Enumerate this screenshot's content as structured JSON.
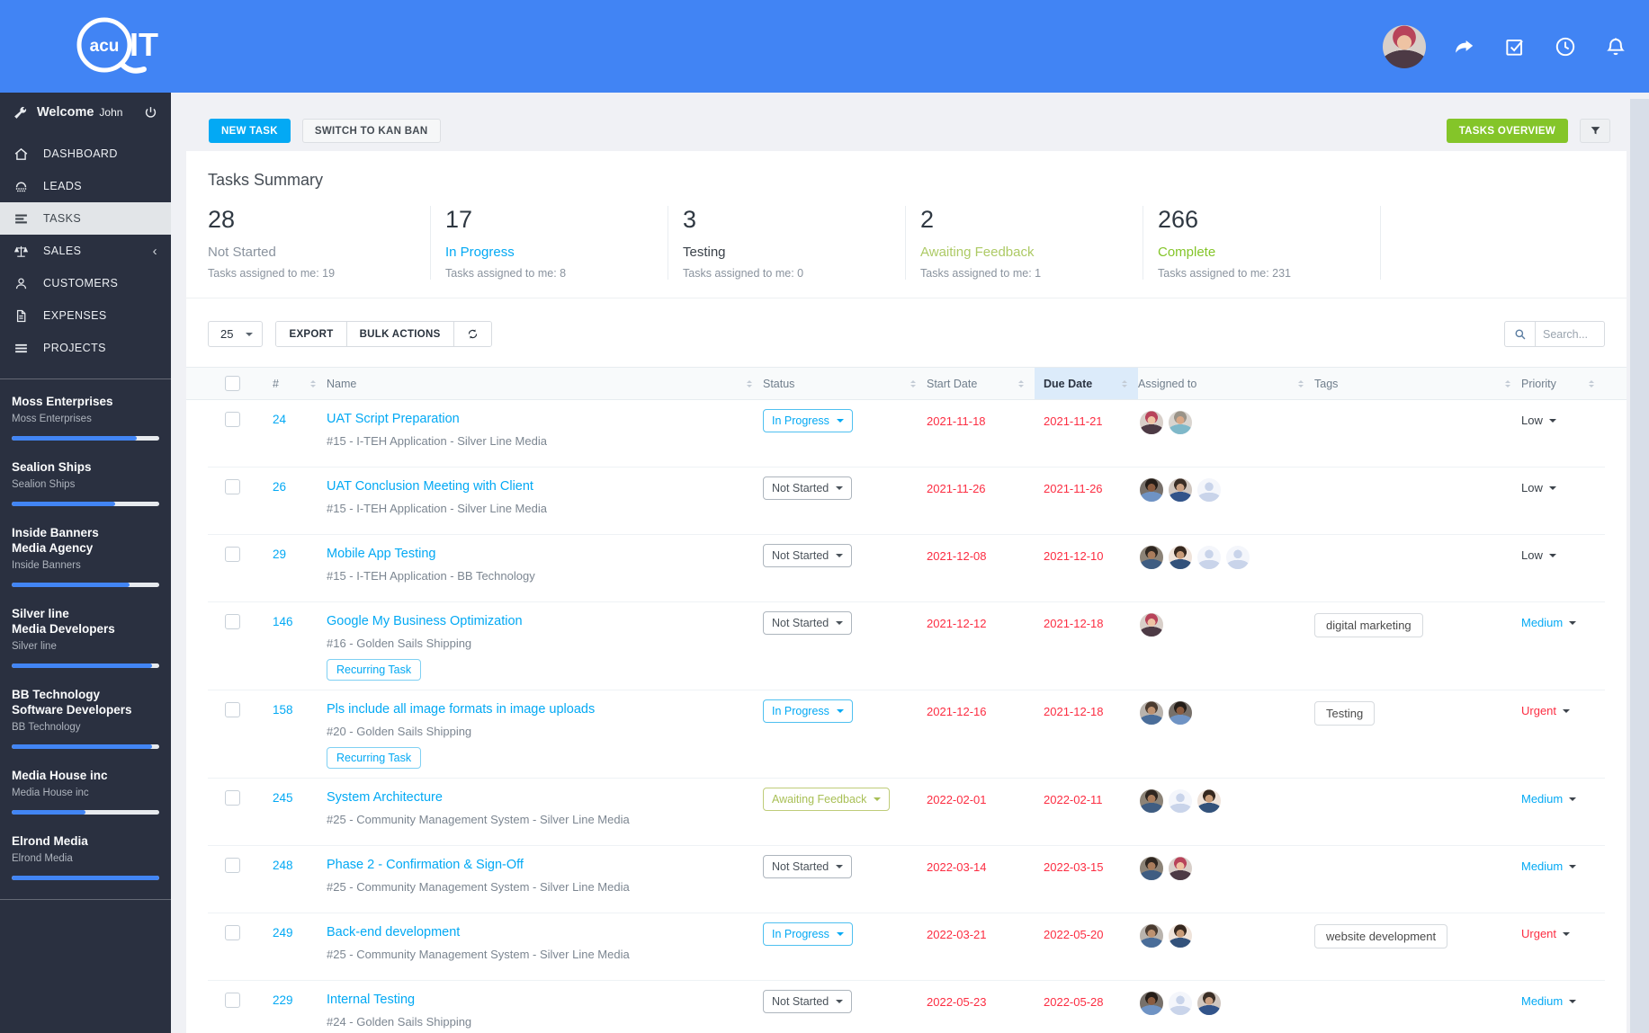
{
  "header": {
    "logo": {
      "circle_text": "acu",
      "suffix_text": "IT"
    },
    "icons": [
      "share-icon",
      "check-square-icon",
      "clock-icon",
      "bell-icon"
    ]
  },
  "sidebar": {
    "greeting": "Welcome",
    "user": "John",
    "menu": [
      {
        "label": "DASHBOARD",
        "icon": "home-icon"
      },
      {
        "label": "LEADS",
        "icon": "leads-icon"
      },
      {
        "label": "TASKS",
        "icon": "tasks-icon"
      },
      {
        "label": "SALES",
        "icon": "scale-icon"
      },
      {
        "label": "CUSTOMERS",
        "icon": "person-icon"
      },
      {
        "label": "EXPENSES",
        "icon": "document-icon"
      },
      {
        "label": "PROJECTS",
        "icon": "menu-icon"
      }
    ],
    "projects": [
      {
        "name": "Moss Enterprises",
        "subtitle": "Moss Enterprises",
        "progress": 85
      },
      {
        "name": "Sealion Ships",
        "subtitle": "Sealion Ships",
        "progress": 70
      },
      {
        "name": "Inside Banners",
        "name2": "Media Agency",
        "subtitle": "Inside Banners",
        "progress": 80
      },
      {
        "name": "Silver line",
        "name2": "Media Developers",
        "subtitle": "Silver line",
        "progress": 95
      },
      {
        "name": "BB Technology",
        "name2": "Software Developers",
        "subtitle": "BB Technology",
        "progress": 95
      },
      {
        "name": "Media House inc",
        "subtitle": "Media House inc",
        "progress": 50
      },
      {
        "name": "Elrond Media",
        "subtitle": "Elrond Media",
        "progress": 100
      }
    ]
  },
  "toolbar": {
    "new_task": "NEW TASK",
    "switch_kanban": "SWITCH TO KAN BAN",
    "tasks_overview": "TASKS OVERVIEW"
  },
  "summary": {
    "title": "Tasks Summary",
    "items": [
      {
        "count": "28",
        "label": "Not Started",
        "assigned": "Tasks assigned to me: 19",
        "color": "#8a939e"
      },
      {
        "count": "17",
        "label": "In Progress",
        "assigned": "Tasks assigned to me: 8",
        "color": "#03a9f4"
      },
      {
        "count": "3",
        "label": "Testing",
        "assigned": "Tasks assigned to me: 0",
        "color": "#3a4149"
      },
      {
        "count": "2",
        "label": "Awaiting Feedback",
        "assigned": "Tasks assigned to me: 1",
        "color": "#adca65"
      },
      {
        "count": "266",
        "label": "Complete",
        "assigned": "Tasks assigned to me: 231",
        "color": "#84c529"
      }
    ]
  },
  "table_controls": {
    "page_size": "25",
    "export_label": "EXPORT",
    "bulk_actions_label": "BULK ACTIONS",
    "search_placeholder": "Search..."
  },
  "table": {
    "columns": [
      "#",
      "Name",
      "Status",
      "Start Date",
      "Due Date",
      "Assigned to",
      "Tags",
      "Priority"
    ],
    "rows": [
      {
        "id": "24",
        "name": "UAT Script Preparation",
        "subtitle": "#15 - I-TEH Application - Silver Line Media",
        "status": "In Progress",
        "start": "2021-11-18",
        "due": "2021-11-21",
        "avatars": [
          "w1",
          "m2"
        ],
        "tags": [],
        "priority": "Low"
      },
      {
        "id": "26",
        "name": "UAT Conclusion Meeting with Client",
        "subtitle": "#15 - I-TEH Application - Silver Line Media",
        "status": "Not Started",
        "start": "2021-11-26",
        "due": "2021-11-26",
        "avatars": [
          "m3",
          "m4",
          "ph"
        ],
        "tags": [],
        "priority": "Low"
      },
      {
        "id": "29",
        "name": "Mobile App Testing",
        "subtitle": "#15 - I-TEH Application -  BB Technology",
        "status": "Not Started",
        "start": "2021-12-08",
        "due": "2021-12-10",
        "avatars": [
          "m1",
          "m5",
          "ph",
          "ph"
        ],
        "tags": [],
        "priority": "Low"
      },
      {
        "id": "146",
        "name": "Google My Business Optimization",
        "subtitle": "#16 - Golden Sails Shipping",
        "recurring_label": "Recurring Task",
        "status": "Not Started",
        "start": "2021-12-12",
        "due": "2021-12-18",
        "avatars": [
          "w1"
        ],
        "tags": [
          "digital marketing"
        ],
        "priority": "Medium"
      },
      {
        "id": "158",
        "name": "Pls include all image formats in image uploads",
        "subtitle": "#20 - Golden Sails Shipping",
        "recurring_label": "Recurring Task",
        "status": "In Progress",
        "start": "2021-12-16",
        "due": "2021-12-18",
        "avatars": [
          "m6",
          "m3"
        ],
        "tags": [
          "Testing"
        ],
        "priority": "Urgent"
      },
      {
        "id": "245",
        "name": "System Architecture",
        "subtitle": "#25 - Community Management System - Silver Line Media",
        "status": "Awaiting Feedback",
        "start": "2022-02-01",
        "due": "2022-02-11",
        "avatars": [
          "m1",
          "ph",
          "m5"
        ],
        "tags": [],
        "priority": "Medium"
      },
      {
        "id": "248",
        "name": "Phase 2 - Confirmation & Sign-Off",
        "subtitle": "#25 - Community Management System - Silver Line Media",
        "status": "Not Started",
        "start": "2022-03-14",
        "due": "2022-03-15",
        "avatars": [
          "m1",
          "w1"
        ],
        "tags": [],
        "priority": "Medium"
      },
      {
        "id": "249",
        "name": "Back-end development",
        "subtitle": "#25 - Community Management System - Silver Line Media",
        "status": "In Progress",
        "start": "2022-03-21",
        "due": "2022-05-20",
        "avatars": [
          "m6",
          "m5"
        ],
        "tags": [
          "website development"
        ],
        "priority": "Urgent"
      },
      {
        "id": "229",
        "name": "Internal Testing",
        "subtitle": "#24 - Golden Sails Shipping",
        "status": "Not Started",
        "start": "2022-05-23",
        "due": "2022-05-28",
        "avatars": [
          "m3",
          "ph",
          "m4"
        ],
        "tags": [],
        "priority": "Medium"
      }
    ],
    "partial_row": {
      "avatars": [
        "m4",
        "ph"
      ]
    }
  }
}
